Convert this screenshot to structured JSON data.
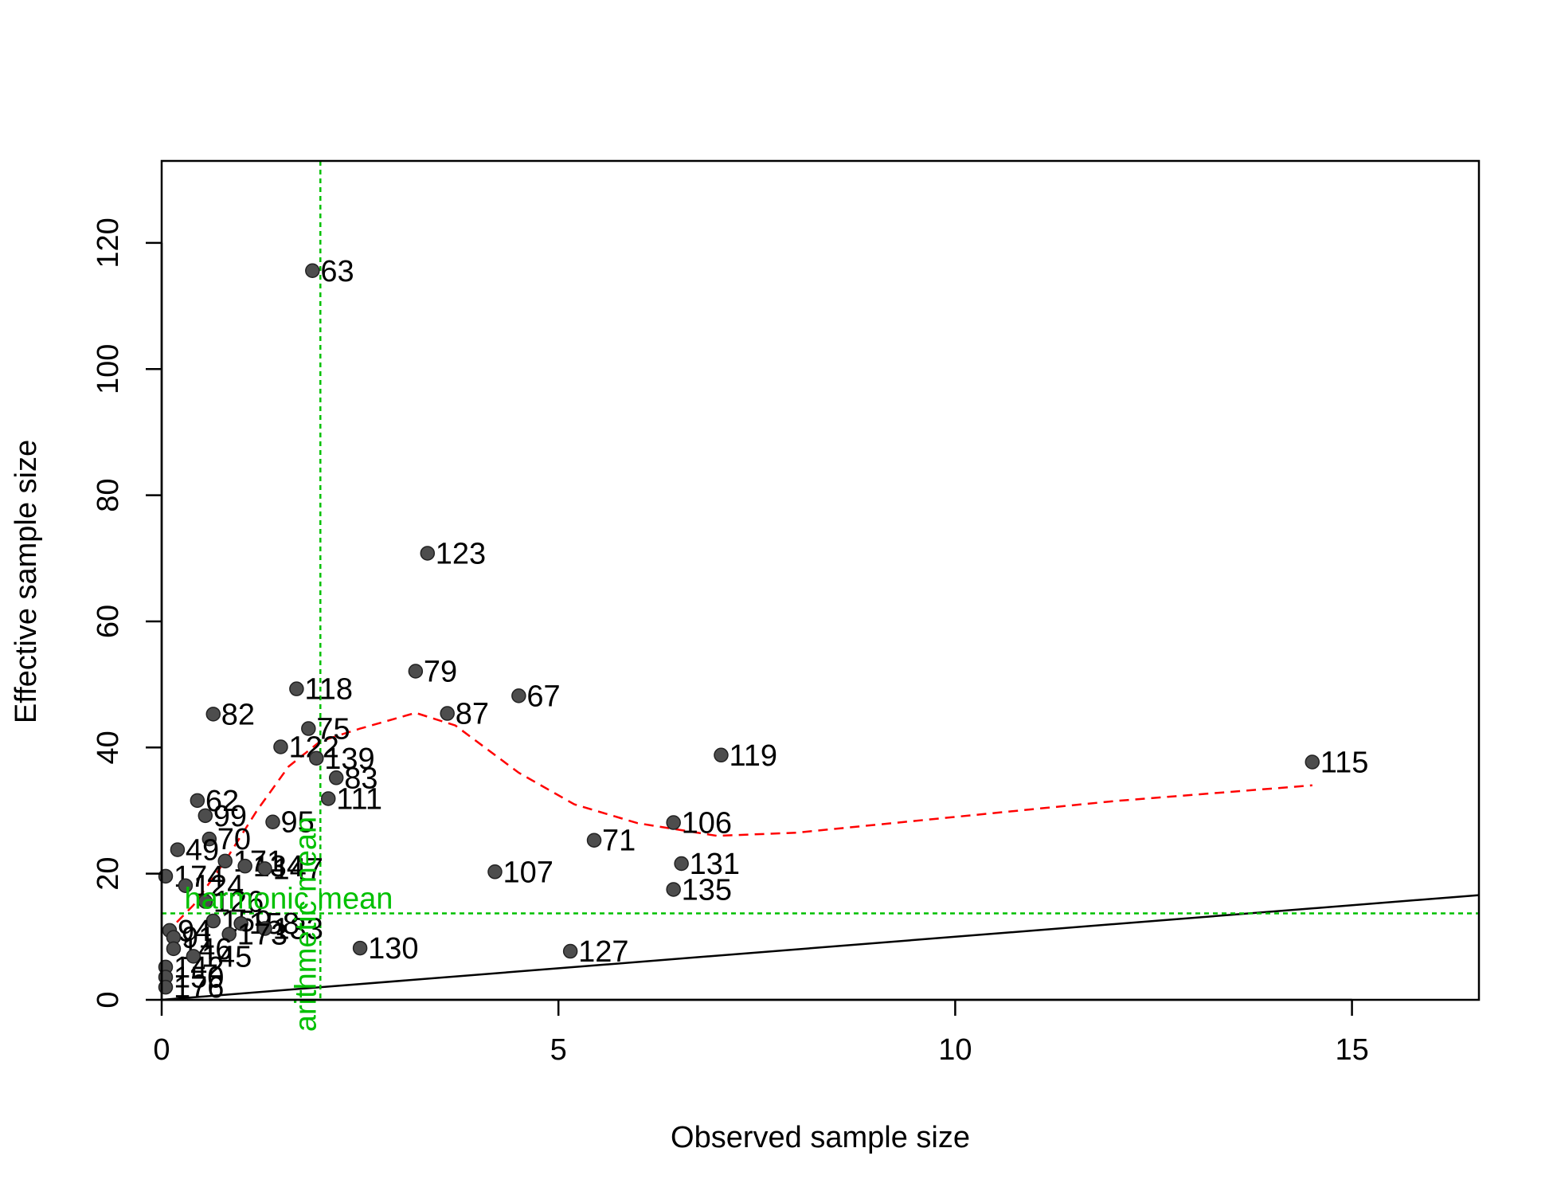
{
  "chart_data": {
    "type": "scatter",
    "title": "",
    "xlabel": "Observed sample size",
    "ylabel": "Effective sample size",
    "xlim": [
      0,
      16.6
    ],
    "ylim": [
      0,
      133
    ],
    "xticks": [
      0,
      5,
      10,
      15
    ],
    "yticks": [
      0,
      20,
      40,
      60,
      80,
      100,
      120
    ],
    "grid": false,
    "point_color": "#4d4d4d",
    "points": [
      {
        "label": "63",
        "x": 1.9,
        "y": 115.6
      },
      {
        "label": "123",
        "x": 3.35,
        "y": 70.8
      },
      {
        "label": "79",
        "x": 3.2,
        "y": 52.1
      },
      {
        "label": "67",
        "x": 4.5,
        "y": 48.2
      },
      {
        "label": "118",
        "x": 1.7,
        "y": 49.3
      },
      {
        "label": "87",
        "x": 3.6,
        "y": 45.4
      },
      {
        "label": "82",
        "x": 0.65,
        "y": 45.3
      },
      {
        "label": "75",
        "x": 1.85,
        "y": 43.0
      },
      {
        "label": "122",
        "x": 1.5,
        "y": 40.1
      },
      {
        "label": "139",
        "x": 1.95,
        "y": 38.3
      },
      {
        "label": "119",
        "x": 7.05,
        "y": 38.8
      },
      {
        "label": "115",
        "x": 14.5,
        "y": 37.7
      },
      {
        "label": "83",
        "x": 2.2,
        "y": 35.2
      },
      {
        "label": "111",
        "x": 2.1,
        "y": 31.9
      },
      {
        "label": "62",
        "x": 0.45,
        "y": 31.6
      },
      {
        "label": "99",
        "x": 0.55,
        "y": 29.2
      },
      {
        "label": "95",
        "x": 1.4,
        "y": 28.2
      },
      {
        "label": "106",
        "x": 6.45,
        "y": 28.1
      },
      {
        "label": "70",
        "x": 0.6,
        "y": 25.5
      },
      {
        "label": "71",
        "x": 5.45,
        "y": 25.3
      },
      {
        "label": "49",
        "x": 0.2,
        "y": 23.8
      },
      {
        "label": "171",
        "x": 0.8,
        "y": 22.0
      },
      {
        "label": "131",
        "x": 6.55,
        "y": 21.6
      },
      {
        "label": "134",
        "x": 1.05,
        "y": 21.2
      },
      {
        "label": "147",
        "x": 1.3,
        "y": 20.8
      },
      {
        "label": "107",
        "x": 4.2,
        "y": 20.3
      },
      {
        "label": "174",
        "x": 0.05,
        "y": 19.6
      },
      {
        "label": "124",
        "x": 0.3,
        "y": 18.1
      },
      {
        "label": "135",
        "x": 6.45,
        "y": 17.5
      },
      {
        "label": "126",
        "x": 0.55,
        "y": 15.6
      },
      {
        "label": "159",
        "x": 0.65,
        "y": 12.5
      },
      {
        "label": "158",
        "x": 1.0,
        "y": 12.1
      },
      {
        "label": "133",
        "x": 1.3,
        "y": 11.3
      },
      {
        "label": "94",
        "x": 0.1,
        "y": 11.0
      },
      {
        "label": "173",
        "x": 0.85,
        "y": 10.4
      },
      {
        "label": "91",
        "x": 0.15,
        "y": 9.9
      },
      {
        "label": "130",
        "x": 2.5,
        "y": 8.2
      },
      {
        "label": "146",
        "x": 0.15,
        "y": 8.1
      },
      {
        "label": "127",
        "x": 5.15,
        "y": 7.7
      },
      {
        "label": "145",
        "x": 0.4,
        "y": 6.9
      },
      {
        "label": "142",
        "x": 0.05,
        "y": 5.2
      },
      {
        "label": "150",
        "x": 0.05,
        "y": 3.6
      },
      {
        "label": "176",
        "x": 0.05,
        "y": 2.0
      }
    ],
    "smooth_curve": {
      "color": "#ff0000",
      "x": [
        0.05,
        0.4,
        0.8,
        1.2,
        1.6,
        2.0,
        2.5,
        3.2,
        3.7,
        4.5,
        5.2,
        6.0,
        7.0,
        8.0,
        10.0,
        12.0,
        14.5
      ],
      "y": [
        10.5,
        15.0,
        22.0,
        30.0,
        37.0,
        41.0,
        43.0,
        45.5,
        43.5,
        36.0,
        31.0,
        28.0,
        26.0,
        26.5,
        29.0,
        31.5,
        34.0
      ]
    },
    "identity_line": {
      "color": "#000000",
      "slope": 1
    },
    "arithmetic_mean": {
      "label": "arithmetic mean",
      "x": 2.0,
      "color": "#00c000"
    },
    "harmonic_mean": {
      "label": "harmonic mean",
      "y": 13.7,
      "color": "#00c000"
    }
  }
}
